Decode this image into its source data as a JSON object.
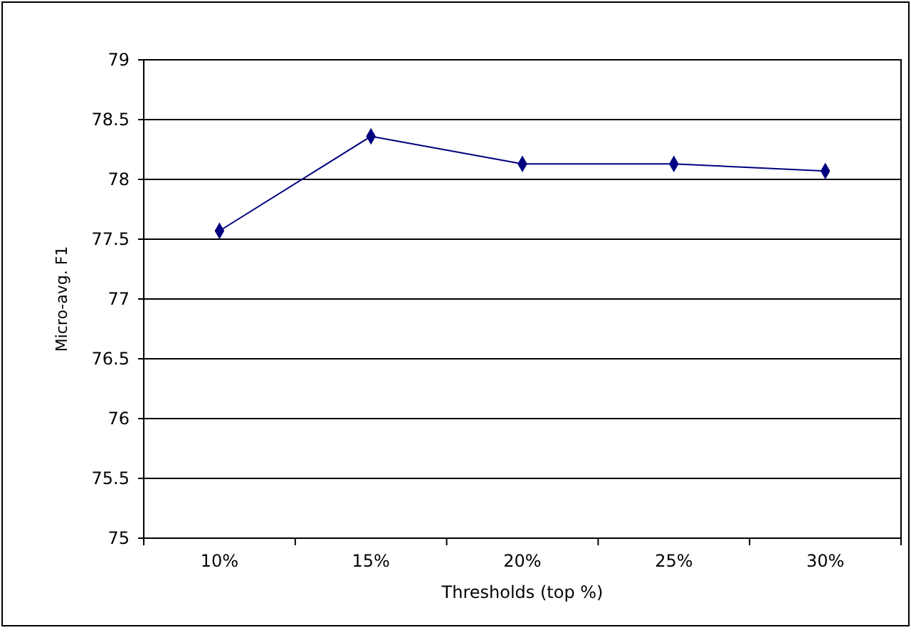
{
  "chart_data": {
    "type": "line",
    "xlabel": "Thresholds (top %)",
    "ylabel": "Micro-avg. F1",
    "categories": [
      "10%",
      "15%",
      "20%",
      "25%",
      "30%"
    ],
    "series": [
      {
        "color": "#000080",
        "values": [
          77.57,
          78.36,
          78.13,
          78.13,
          78.07
        ]
      }
    ],
    "ylim": [
      75,
      79
    ],
    "yticks": [
      75,
      75.5,
      76,
      76.5,
      77,
      77.5,
      78,
      78.5,
      79
    ],
    "grid": "y",
    "marker": "diamond",
    "line_style": "solid"
  }
}
